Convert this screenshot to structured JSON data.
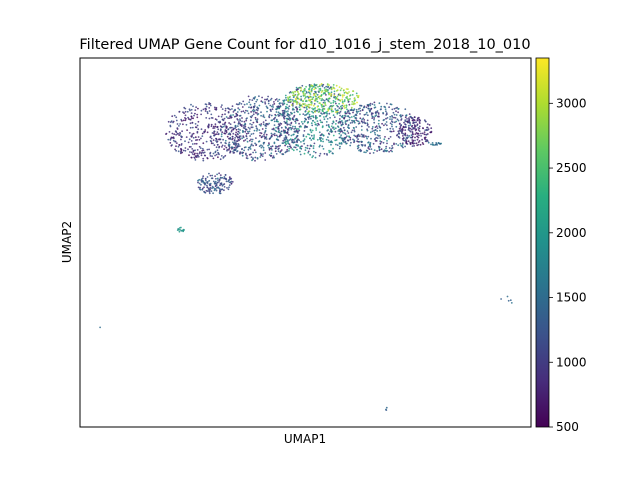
{
  "chart_data": {
    "type": "scatter",
    "title": "Filtered UMAP Gene Count for d10_1016_j_stem_2018_10_010",
    "xlabel": "UMAP1",
    "ylabel": "UMAP2",
    "xticks": [],
    "yticks": [],
    "xlim": [
      0,
      100
    ],
    "ylim": [
      0,
      100
    ],
    "colorbar": {
      "label": "",
      "colormap": "viridis",
      "range": [
        500,
        3350
      ],
      "ticks": [
        500,
        1000,
        1500,
        2000,
        2500,
        3000
      ]
    },
    "clusters": [
      {
        "name": "main-left-lobe",
        "cx": 28,
        "cy": 80,
        "rx": 9,
        "ry": 8,
        "n": 420,
        "value_range": [
          600,
          1300
        ]
      },
      {
        "name": "main-center-left",
        "cx": 40,
        "cy": 81,
        "rx": 9,
        "ry": 9,
        "n": 520,
        "value_range": [
          650,
          1700
        ]
      },
      {
        "name": "main-center",
        "cx": 52,
        "cy": 83,
        "rx": 9,
        "ry": 10,
        "n": 560,
        "value_range": [
          800,
          2300
        ]
      },
      {
        "name": "main-center-top",
        "cx": 54,
        "cy": 89,
        "rx": 8,
        "ry": 4,
        "n": 260,
        "value_range": [
          2200,
          3300
        ]
      },
      {
        "name": "main-right",
        "cx": 66,
        "cy": 81,
        "rx": 9,
        "ry": 7,
        "n": 420,
        "value_range": [
          700,
          1800
        ]
      },
      {
        "name": "main-far-right",
        "cx": 74,
        "cy": 80,
        "rx": 4,
        "ry": 4,
        "n": 160,
        "value_range": [
          600,
          1200
        ]
      },
      {
        "name": "lower-appendage",
        "cx": 30,
        "cy": 66,
        "rx": 4,
        "ry": 3,
        "n": 140,
        "value_range": [
          800,
          1600
        ]
      },
      {
        "name": "right-tail",
        "cx": 78.5,
        "cy": 76.8,
        "rx": 1.6,
        "ry": 0.4,
        "n": 18,
        "value_range": [
          1300,
          1700
        ]
      },
      {
        "name": "small-teal-cluster",
        "cx": 22.5,
        "cy": 53.5,
        "rx": 0.9,
        "ry": 0.7,
        "n": 14,
        "value_range": [
          1800,
          2100
        ]
      },
      {
        "name": "outliers-right",
        "cx": 94,
        "cy": 35,
        "rx": 3,
        "ry": 2,
        "n": 5,
        "value_range": [
          1300,
          1700
        ]
      },
      {
        "name": "outlier-left",
        "cx": 4.5,
        "cy": 27,
        "rx": 0.1,
        "ry": 0.1,
        "n": 1,
        "value_range": [
          1500,
          1500
        ]
      },
      {
        "name": "outlier-bottom",
        "cx": 68,
        "cy": 5,
        "rx": 0.3,
        "ry": 0.6,
        "n": 3,
        "value_range": [
          1300,
          1500
        ]
      }
    ],
    "grid": false,
    "legend": "colorbar-right"
  }
}
